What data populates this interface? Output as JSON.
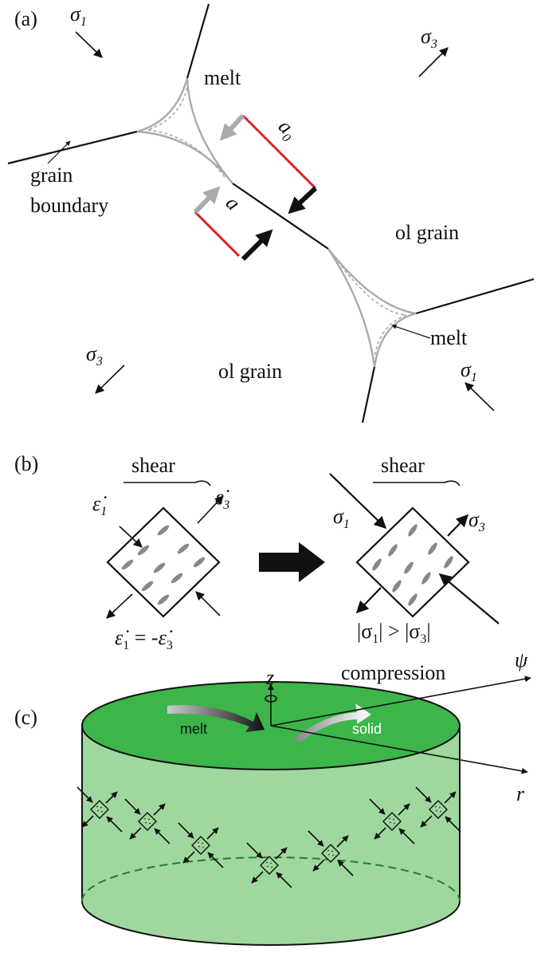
{
  "panel_a": {
    "label": "(a)",
    "sigma_top_left": {
      "symbol": "σ",
      "sub": "1"
    },
    "sigma_top_right": {
      "symbol": "σ",
      "sub": "3"
    },
    "sigma_bottom_left": {
      "symbol": "σ",
      "sub": "3"
    },
    "sigma_bottom_right": {
      "symbol": "σ",
      "sub": "1"
    },
    "melt_top": "melt",
    "melt_bottom": "melt",
    "gap_initial": {
      "symbol": "a",
      "sub": "0"
    },
    "gap": "a",
    "grain_boundary": [
      "grain",
      "boundary"
    ],
    "grain_right": "ol grain",
    "grain_bottom": "ol grain"
  },
  "panel_b": {
    "label": "(b)",
    "left": {
      "shear": "shear",
      "rate_1": {
        "symbol": "ε̇",
        "sub": "1"
      },
      "rate_3": {
        "symbol": "ε̇",
        "sub": "3"
      },
      "equation": [
        "ε̇",
        "1",
        " = -",
        "ε̇",
        "3"
      ]
    },
    "right": {
      "shear": "shear",
      "sigma_1": {
        "symbol": "σ",
        "sub": "1"
      },
      "sigma_3": {
        "symbol": "σ",
        "sub": "3"
      },
      "inequality": [
        "|σ",
        "1",
        "| > |σ",
        "3",
        "|"
      ],
      "caption": "compression"
    }
  },
  "panel_c": {
    "label": "(c)",
    "axis_z": "z",
    "axis_psi": "ψ",
    "axis_r": "r",
    "melt": "melt",
    "solid": "solid"
  }
}
